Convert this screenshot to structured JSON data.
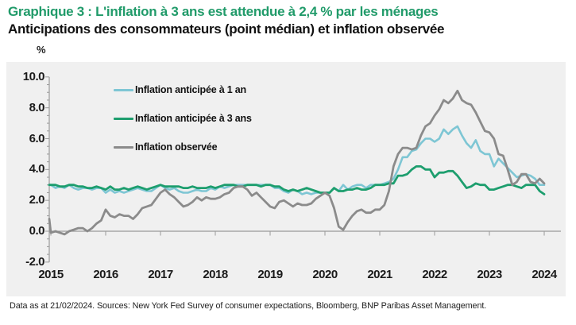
{
  "header": {
    "title": "Graphique 3 : L'inflation à 3 ans est attendue à 2,4 % par les ménages",
    "subtitle": "Anticipations des consommateurs (point médian) et inflation observée",
    "title_color": "#219b6a"
  },
  "axis_unit_label": "%",
  "footnote": "Data as at 21/02/2024. Sources: New York Fed Survey of consumer expectations, Bloomberg, BNP Paribas Asset Management.",
  "colors": {
    "panel_background": "#f0f0f0",
    "axis": "#9a9a9a",
    "tick_text": "#1a1a1a",
    "series_1y": "#7ec6d4",
    "series_3y": "#1d9e6e",
    "series_observed": "#8b8b8b"
  },
  "chart_data": {
    "type": "line",
    "title": "Graphique 3 : L'inflation à 3 ans est attendue à 2,4 % par les ménages",
    "subtitle": "Anticipations des consommateurs (point médian) et inflation observée",
    "ylabel": "%",
    "ylim": [
      -2.0,
      10.0
    ],
    "y_ticks": [
      10.0,
      8.0,
      6.0,
      4.0,
      2.0,
      0.0,
      -2.0
    ],
    "y_ticklabels": [
      "10.0",
      "8.0",
      "6.0",
      "4.0",
      "2.0",
      "0.0",
      "-2.0"
    ],
    "y_minor_tick_step": 0.5,
    "x_ticklabels": [
      "2015",
      "2016",
      "2017",
      "2018",
      "2019",
      "2020",
      "2021",
      "2022",
      "2023",
      "2024"
    ],
    "x_start": 2014.9167,
    "x_step": "monthly",
    "grid": false,
    "zero_line": true,
    "legend_position": "top-left-inside",
    "series": [
      {
        "name": "Inflation anticipée à 1 an",
        "color": "#7ec6d4",
        "width": 2.6,
        "values": [
          3.0,
          3.0,
          2.8,
          2.9,
          2.8,
          3.0,
          2.8,
          2.7,
          2.8,
          2.8,
          2.7,
          2.8,
          2.8,
          2.5,
          2.7,
          2.5,
          2.6,
          2.5,
          2.6,
          2.7,
          2.8,
          2.7,
          2.6,
          2.6,
          2.8,
          3.0,
          2.8,
          2.7,
          2.8,
          2.6,
          2.5,
          2.5,
          2.6,
          2.7,
          2.6,
          2.6,
          2.8,
          2.7,
          2.9,
          2.8,
          2.9,
          3.0,
          3.0,
          3.0,
          3.0,
          3.0,
          3.0,
          3.0,
          3.0,
          3.0,
          2.8,
          2.8,
          2.6,
          2.5,
          2.7,
          2.6,
          2.4,
          2.5,
          2.4,
          2.5,
          2.5,
          2.5,
          2.5,
          2.8,
          2.6,
          3.0,
          2.7,
          2.9,
          3.0,
          3.0,
          2.8,
          3.0,
          3.0,
          3.0,
          3.1,
          3.2,
          3.4,
          4.0,
          4.8,
          4.8,
          5.2,
          5.3,
          5.7,
          6.0,
          6.0,
          5.8,
          6.0,
          6.6,
          6.3,
          6.6,
          6.8,
          6.2,
          5.7,
          5.4,
          5.9,
          5.2,
          5.0,
          5.0,
          4.2,
          4.7,
          4.4,
          4.1,
          3.8,
          3.5,
          3.6,
          3.7,
          3.6,
          3.4,
          3.0,
          3.0
        ]
      },
      {
        "name": "Inflation anticipée à 3 ans",
        "color": "#1d9e6e",
        "width": 2.8,
        "values": [
          3.0,
          3.0,
          3.0,
          2.9,
          2.9,
          3.0,
          3.0,
          2.9,
          2.9,
          2.8,
          2.8,
          2.9,
          2.8,
          2.7,
          2.9,
          2.7,
          2.7,
          2.8,
          2.7,
          2.8,
          2.9,
          2.8,
          2.7,
          2.8,
          2.9,
          3.0,
          2.9,
          2.9,
          2.9,
          2.9,
          2.8,
          2.8,
          2.9,
          2.8,
          2.8,
          2.8,
          2.9,
          2.8,
          2.9,
          3.0,
          3.0,
          3.0,
          2.9,
          2.9,
          3.0,
          3.0,
          3.0,
          2.9,
          3.0,
          3.0,
          2.9,
          2.9,
          2.7,
          2.6,
          2.7,
          2.6,
          2.7,
          2.8,
          2.7,
          2.6,
          2.5,
          2.5,
          2.5,
          2.8,
          2.6,
          2.6,
          2.7,
          2.7,
          2.8,
          2.7,
          2.7,
          2.8,
          3.0,
          3.0,
          3.0,
          3.1,
          3.1,
          3.6,
          3.6,
          3.7,
          4.0,
          4.2,
          4.2,
          4.0,
          4.0,
          3.5,
          3.8,
          3.8,
          3.9,
          3.9,
          3.6,
          3.2,
          2.8,
          2.9,
          3.1,
          3.0,
          3.0,
          2.7,
          2.7,
          2.8,
          2.9,
          3.0,
          3.0,
          2.9,
          2.8,
          3.0,
          3.0,
          3.0,
          2.6,
          2.4
        ]
      },
      {
        "name": "Inflation observée",
        "color": "#8b8b8b",
        "width": 2.8,
        "values": [
          0.8,
          -0.1,
          0.0,
          -0.1,
          -0.2,
          0.0,
          0.1,
          0.2,
          0.2,
          0.0,
          0.2,
          0.5,
          0.7,
          1.4,
          1.0,
          0.9,
          1.1,
          1.0,
          1.0,
          0.8,
          1.1,
          1.5,
          1.6,
          1.7,
          2.1,
          2.5,
          2.7,
          2.4,
          2.2,
          1.9,
          1.6,
          1.7,
          1.9,
          2.2,
          2.0,
          2.2,
          2.1,
          2.1,
          2.2,
          2.4,
          2.5,
          2.8,
          2.9,
          2.9,
          2.7,
          2.3,
          2.5,
          2.2,
          1.9,
          1.6,
          1.5,
          1.9,
          2.0,
          1.8,
          1.6,
          1.8,
          1.7,
          1.7,
          1.8,
          2.1,
          2.3,
          2.5,
          2.3,
          1.5,
          0.3,
          0.1,
          0.6,
          1.0,
          1.3,
          1.4,
          1.2,
          1.2,
          1.4,
          1.4,
          1.7,
          2.6,
          4.2,
          5.0,
          5.4,
          5.4,
          5.3,
          5.4,
          6.2,
          6.8,
          7.0,
          7.5,
          7.9,
          8.5,
          8.3,
          8.6,
          9.1,
          8.5,
          8.3,
          8.2,
          7.7,
          7.1,
          6.5,
          6.4,
          6.0,
          5.0,
          4.9,
          4.0,
          3.0,
          3.2,
          3.7,
          3.7,
          3.2,
          3.1,
          3.4,
          3.1
        ]
      }
    ]
  }
}
